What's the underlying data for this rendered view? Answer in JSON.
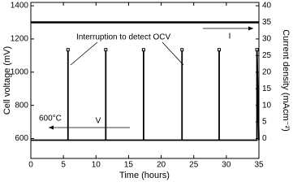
{
  "chart_data": {
    "type": "line",
    "xlabel": "Time (hours)",
    "ylabel": "Cell voltage (mV)",
    "y2label": "Current density (mAcm⁻²)",
    "xlim": [
      0,
      35
    ],
    "xticks": [
      0,
      5,
      10,
      15,
      20,
      25,
      30,
      35
    ],
    "ylim": [
      480,
      1420
    ],
    "yticks": [
      600,
      800,
      1000,
      1200,
      1400
    ],
    "y2lim": [
      -6,
      41
    ],
    "y2ticks": [
      0,
      5,
      10,
      15,
      20,
      25,
      30,
      35,
      40
    ],
    "series": [
      {
        "name": "V",
        "color": "#000000",
        "x": [
          0,
          5.7,
          5.7,
          5.7,
          11.5,
          11.5,
          11.5,
          17.3,
          17.3,
          17.3,
          23.2,
          23.2,
          23.2,
          28.9,
          28.9,
          28.9,
          34.7,
          34.7,
          35
        ],
        "values": [
          590,
          590,
          1135,
          590,
          590,
          1135,
          590,
          590,
          1135,
          590,
          590,
          1135,
          590,
          590,
          1135,
          590,
          590,
          1135,
          590
        ]
      },
      {
        "name": "I",
        "color": "#000000",
        "axis": "y2",
        "x": [
          0,
          5,
          10,
          15,
          20,
          25,
          30,
          35
        ],
        "values": [
          35,
          35,
          35,
          35,
          35,
          35,
          35,
          35
        ]
      }
    ],
    "annotations": [
      "Interruption to detect OCV",
      "600°C"
    ]
  }
}
